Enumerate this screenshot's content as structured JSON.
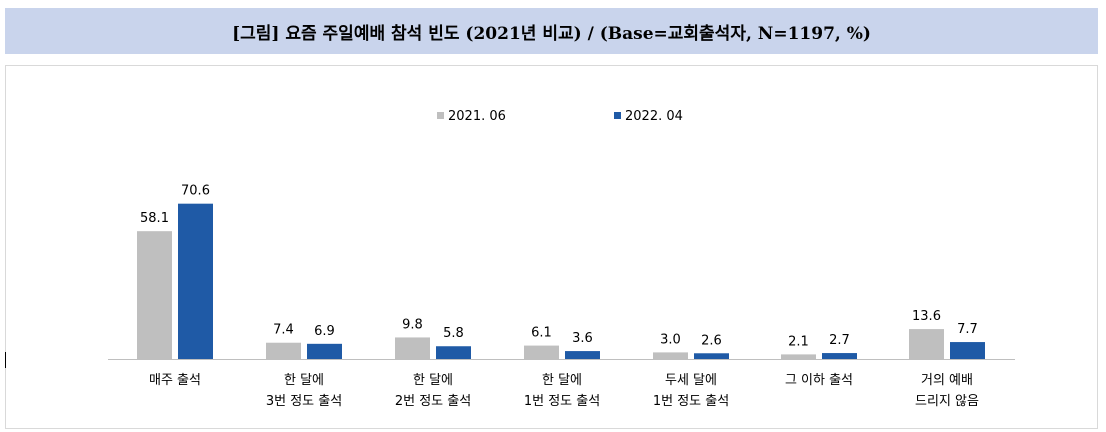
{
  "title": "[그림] 요즘 주일예배 참석 빈도 (2021년 비교) / (Base=교회출석자, N=1197, %)",
  "chart_data": {
    "type": "bar",
    "categories": [
      [
        "매주 출석"
      ],
      [
        "한 달에",
        "3번 정도 출석"
      ],
      [
        "한 달에",
        "2번 정도 출석"
      ],
      [
        "한 달에",
        "1번 정도 출석"
      ],
      [
        "두세 달에",
        "1번 정도 출석"
      ],
      [
        "그 이하 출석"
      ],
      [
        "거의 예배",
        "드리지 않음"
      ]
    ],
    "series": [
      {
        "name": "2021. 06",
        "color": "#bfbfbf",
        "values": [
          58.1,
          7.4,
          9.8,
          6.1,
          3.0,
          2.1,
          13.6
        ]
      },
      {
        "name": "2022. 04",
        "color": "#1f5aa6",
        "values": [
          70.6,
          6.9,
          5.8,
          3.6,
          2.6,
          2.7,
          7.7
        ]
      }
    ],
    "ylim": [
      0,
      100
    ],
    "legend_position": "top-center",
    "grid": false
  }
}
